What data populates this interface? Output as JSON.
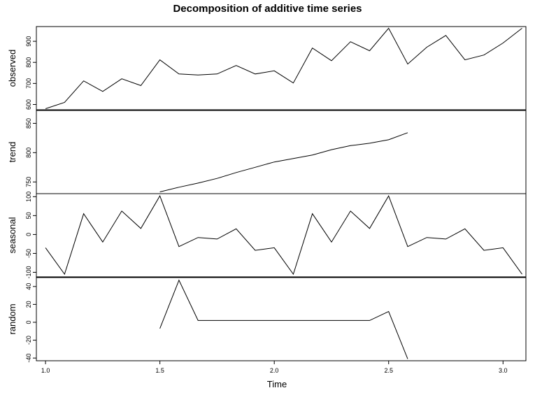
{
  "chart_data": {
    "type": "line",
    "title": "Decomposition of additive time series",
    "xlabel": "Time",
    "x_ticks": [
      1.0,
      1.5,
      2.0,
      2.5,
      3.0
    ],
    "x_tick_labels": [
      "1.0",
      "1.5",
      "2.0",
      "2.5",
      "3.0"
    ],
    "xlim": [
      0.96,
      3.1
    ],
    "grid": false,
    "panels": [
      {
        "name": "observed",
        "ylabel": "observed",
        "ylim": [
          575,
          970
        ],
        "y_ticks": [
          600,
          700,
          800,
          900
        ],
        "y_tick_labels": [
          "600",
          "700",
          "800",
          "900"
        ],
        "x": [
          1.0,
          1.0833,
          1.1667,
          1.25,
          1.3333,
          1.4167,
          1.5,
          1.5833,
          1.6667,
          1.75,
          1.8333,
          1.9167,
          2.0,
          2.0833,
          2.1667,
          2.25,
          2.3333,
          2.4167,
          2.5,
          2.5833,
          2.6667,
          2.75,
          2.8333,
          2.9167,
          3.0,
          3.0833
        ],
        "values": [
          580,
          610,
          712,
          662,
          722,
          690,
          812,
          745,
          740,
          745,
          785,
          745,
          760,
          702,
          868,
          808,
          898,
          855,
          962,
          792,
          872,
          928,
          812,
          835,
          892,
          962
        ]
      },
      {
        "name": "trend",
        "ylabel": "trend",
        "ylim": [
          730,
          872
        ],
        "y_ticks": [
          750,
          800,
          850
        ],
        "y_tick_labels": [
          "750",
          "800",
          "850"
        ],
        "x": [
          1.5,
          1.5833,
          1.6667,
          1.75,
          1.8333,
          1.9167,
          2.0,
          2.0833,
          2.1667,
          2.25,
          2.3333,
          2.4167,
          2.5,
          2.5833
        ],
        "values": [
          733,
          741,
          748,
          756,
          766,
          775,
          784,
          790,
          796,
          805,
          812,
          816,
          822,
          834
        ]
      },
      {
        "name": "seasonal",
        "ylabel": "seasonal",
        "ylim": [
          -112,
          108
        ],
        "y_ticks": [
          -100,
          -50,
          0,
          50,
          100
        ],
        "y_tick_labels": [
          "-100",
          "-50",
          "0",
          "50",
          "100"
        ],
        "x": [
          1.0,
          1.0833,
          1.1667,
          1.25,
          1.3333,
          1.4167,
          1.5,
          1.5833,
          1.6667,
          1.75,
          1.8333,
          1.9167,
          2.0,
          2.0833,
          2.1667,
          2.25,
          2.3333,
          2.4167,
          2.5,
          2.5833,
          2.6667,
          2.75,
          2.8333,
          2.9167,
          3.0,
          3.0833
        ],
        "values": [
          -35,
          -105,
          55,
          -20,
          62,
          16,
          102,
          -32,
          -8,
          -12,
          15,
          -42,
          -35,
          -105,
          55,
          -20,
          62,
          16,
          102,
          -32,
          -8,
          -12,
          15,
          -42,
          -35,
          -105
        ]
      },
      {
        "name": "random",
        "ylabel": "random",
        "ylim": [
          -43,
          50
        ],
        "y_ticks": [
          -40,
          -20,
          0,
          20,
          40
        ],
        "y_tick_labels": [
          "-40",
          "-20",
          "0",
          "20",
          "40"
        ],
        "x": [
          1.5,
          1.5833,
          1.6667,
          1.75,
          1.8333,
          1.9167,
          2.0,
          2.0833,
          2.1667,
          2.25,
          2.3333,
          2.4167,
          2.5,
          2.5833
        ],
        "values": [
          -7,
          47,
          2,
          2,
          2,
          2,
          2,
          2,
          2,
          2,
          2,
          2,
          12,
          -41
        ]
      }
    ]
  }
}
